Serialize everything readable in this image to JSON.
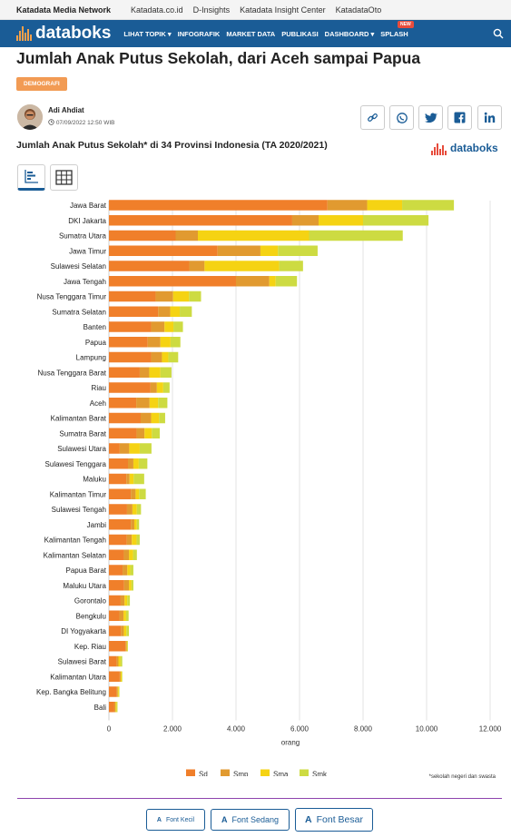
{
  "topbar": {
    "brand": "Katadata Media Network",
    "links": [
      "Katadata.co.id",
      "D-Insights",
      "Katadata Insight Center",
      "KatadataOto"
    ]
  },
  "navbar": {
    "logo": "databoks",
    "items": [
      "LIHAT TOPIK ▾",
      "INFOGRAFIK",
      "MARKET DATA",
      "PUBLIKASI",
      "DASHBOARD ▾",
      "SPLASH"
    ],
    "new_badge": "NEW",
    "search_icon": "search-icon"
  },
  "article": {
    "title": "Jumlah Anak Putus Sekolah, dari Aceh sampai Papua",
    "tag": "DEMOGRAFI",
    "author": "Adi Ahdiat",
    "date": "07/09/2022 12:50 WIB"
  },
  "share_icons": [
    "link-icon",
    "whatsapp-icon",
    "twitter-icon",
    "facebook-icon",
    "linkedin-icon"
  ],
  "view_icons": [
    "bar-chart-view-icon",
    "table-view-icon"
  ],
  "colors": {
    "sd": "#f07f2a",
    "smp": "#e19a30",
    "sma": "#f5d313",
    "smk": "#cddb42",
    "nav": "#1a5c96"
  },
  "chart_data": {
    "type": "bar",
    "orientation": "horizontal",
    "stacked": true,
    "title": "Jumlah Anak Putus Sekolah* di 34 Provinsi Indonesia (TA 2020/2021)",
    "xlabel": "orang",
    "xlim": [
      0,
      12000
    ],
    "xticks": [
      0,
      2000,
      4000,
      6000,
      8000,
      10000,
      12000
    ],
    "xtick_labels": [
      "0",
      "2.000",
      "4.000",
      "6.000",
      "8.000",
      "10.000",
      "12.000"
    ],
    "grid": true,
    "legend_position": "bottom",
    "categories": [
      "Jawa Barat",
      "DKI Jakarta",
      "Sumatra Utara",
      "Jawa Timur",
      "Sulawesi Selatan",
      "Jawa Tengah",
      "Nusa Tenggara Timur",
      "Sumatra Selatan",
      "Banten",
      "Papua",
      "Lampung",
      "Nusa Tenggara Barat",
      "Riau",
      "Aceh",
      "Kalimantan Barat",
      "Sumatra Barat",
      "Sulawesi Utara",
      "Sulawesi Tenggara",
      "Maluku",
      "Kalimantan Timur",
      "Sulawesi Tengah",
      "Jambi",
      "Kalimantan Tengah",
      "Kalimantan Selatan",
      "Papua Barat",
      "Maluku Utara",
      "Gorontalo",
      "Bengkulu",
      "DI Yogyakarta",
      "Kep. Riau",
      "Sulawesi Barat",
      "Kalimantan Utara",
      "Kep. Bangka Belitung",
      "Bali"
    ],
    "series": [
      {
        "name": "Sd",
        "values": [
          6880,
          5770,
          2100,
          3420,
          2530,
          4000,
          1470,
          1550,
          1330,
          1220,
          1330,
          970,
          1310,
          860,
          1000,
          870,
          340,
          600,
          550,
          690,
          570,
          690,
          560,
          470,
          430,
          480,
          370,
          330,
          380,
          520,
          240,
          340,
          240,
          170
        ]
      },
      {
        "name": "Smp",
        "values": [
          1250,
          830,
          700,
          1350,
          480,
          1050,
          550,
          380,
          420,
          400,
          340,
          300,
          200,
          420,
          330,
          250,
          300,
          170,
          100,
          150,
          170,
          110,
          160,
          160,
          150,
          150,
          120,
          130,
          90,
          40,
          60,
          30,
          40,
          40
        ]
      },
      {
        "name": "Sma",
        "values": [
          1100,
          1400,
          3500,
          550,
          2350,
          200,
          500,
          300,
          280,
          320,
          200,
          350,
          200,
          270,
          250,
          230,
          330,
          170,
          130,
          110,
          140,
          80,
          150,
          130,
          90,
          80,
          90,
          80,
          80,
          20,
          60,
          30,
          30,
          30
        ]
      },
      {
        "name": "Smk",
        "values": [
          1630,
          2060,
          2950,
          1250,
          750,
          670,
          380,
          380,
          300,
          310,
          310,
          350,
          200,
          290,
          190,
          250,
          370,
          270,
          330,
          210,
          130,
          70,
          100,
          120,
          100,
          60,
          80,
          80,
          80,
          20,
          60,
          20,
          20,
          30
        ]
      }
    ]
  },
  "footnote": "*sekolah negeri dan swasta",
  "font_buttons": [
    "Font Kecil",
    "Font Sedang",
    "Font Besar"
  ],
  "font_button_icon_letter": "A"
}
